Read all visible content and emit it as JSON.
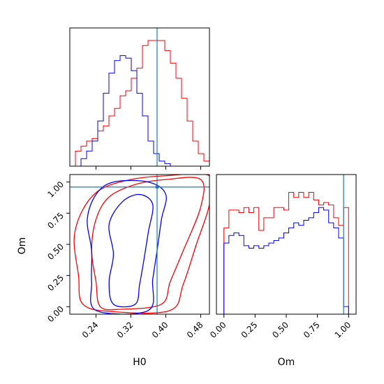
{
  "colors": {
    "series_red": "#ff0000",
    "series_blue": "#0000ff",
    "truth": "#1f77b4",
    "frame": "#000000"
  },
  "chart_data": [
    {
      "panel": "marginal-H0",
      "type": "histogram",
      "xlabel": "",
      "xlim": [
        0.18,
        0.5
      ],
      "x_ticks": [
        "0.24",
        "0.32",
        "0.40",
        "0.48"
      ],
      "tick_labels_shown": false,
      "y_ticks_shown": false,
      "bin_edges": [
        0.18,
        0.1928,
        0.2056,
        0.2184,
        0.2312,
        0.244,
        0.2568,
        0.2696,
        0.2824,
        0.2952,
        0.308,
        0.3208,
        0.3336,
        0.3464,
        0.3592,
        0.372,
        0.3848,
        0.3976,
        0.4104,
        0.4232,
        0.436,
        0.4488,
        0.4616,
        0.4744,
        0.4872,
        0.5
      ],
      "truth_value": 0.38,
      "ylim": [
        0,
        1.1
      ],
      "series": [
        {
          "color": "red",
          "values": [
            0.0,
            0.12,
            0.16,
            0.2,
            0.22,
            0.28,
            0.32,
            0.4,
            0.46,
            0.56,
            0.6,
            0.7,
            0.78,
            0.96,
            1.0,
            1.0,
            1.0,
            0.92,
            0.82,
            0.7,
            0.54,
            0.36,
            0.2,
            0.1,
            0.04
          ]
        },
        {
          "color": "blue",
          "values": [
            0.0,
            0.0,
            0.06,
            0.12,
            0.2,
            0.36,
            0.58,
            0.74,
            0.84,
            0.88,
            0.86,
            0.76,
            0.58,
            0.4,
            0.2,
            0.1,
            0.04,
            0.02,
            0.0,
            0.0,
            0.0,
            0.0,
            0.0,
            0.0,
            0.0
          ]
        }
      ]
    },
    {
      "panel": "joint-H0-Om",
      "type": "contour",
      "xlabel": "H0",
      "ylabel": "Om",
      "xlim": [
        0.18,
        0.5
      ],
      "ylim": [
        -0.06,
        1.06
      ],
      "x_ticks": [
        "0.24",
        "0.32",
        "0.40",
        "0.48"
      ],
      "y_ticks": [
        "0.00",
        "0.25",
        "0.50",
        "0.75",
        "1.00"
      ],
      "truth": {
        "x": 0.38,
        "y": 0.96
      },
      "contours": [
        {
          "color": "red",
          "points": [
            [
              0.25,
              0.0
            ],
            [
              0.24,
              0.2
            ],
            [
              0.23,
              0.45
            ],
            [
              0.24,
              0.7
            ],
            [
              0.27,
              0.88
            ],
            [
              0.33,
              0.98
            ],
            [
              0.4,
              1.02
            ],
            [
              0.48,
              1.02
            ],
            [
              0.48,
              0.8
            ],
            [
              0.44,
              0.45
            ],
            [
              0.41,
              0.2
            ],
            [
              0.39,
              0.02
            ],
            [
              0.3,
              -0.02
            ]
          ]
        },
        {
          "color": "red",
          "points": [
            [
              0.21,
              0.02
            ],
            [
              0.2,
              0.25
            ],
            [
              0.19,
              0.55
            ],
            [
              0.21,
              0.78
            ],
            [
              0.25,
              0.94
            ],
            [
              0.32,
              1.02
            ],
            [
              0.4,
              1.05
            ],
            [
              0.5,
              1.05
            ],
            [
              0.5,
              0.82
            ],
            [
              0.47,
              0.5
            ],
            [
              0.44,
              0.18
            ],
            [
              0.41,
              -0.03
            ],
            [
              0.28,
              -0.04
            ]
          ]
        },
        {
          "color": "blue",
          "points": [
            [
              0.28,
              0.02
            ],
            [
              0.27,
              0.2
            ],
            [
              0.28,
              0.42
            ],
            [
              0.27,
              0.66
            ],
            [
              0.3,
              0.84
            ],
            [
              0.34,
              0.9
            ],
            [
              0.37,
              0.82
            ],
            [
              0.36,
              0.6
            ],
            [
              0.35,
              0.38
            ],
            [
              0.34,
              0.18
            ],
            [
              0.33,
              0.02
            ]
          ]
        },
        {
          "color": "blue",
          "points": [
            [
              0.24,
              -0.03
            ],
            [
              0.23,
              0.2
            ],
            [
              0.23,
              0.45
            ],
            [
              0.22,
              0.7
            ],
            [
              0.24,
              0.9
            ],
            [
              0.28,
              1.0
            ],
            [
              0.36,
              1.0
            ],
            [
              0.4,
              0.9
            ],
            [
              0.39,
              0.7
            ],
            [
              0.38,
              0.45
            ],
            [
              0.37,
              0.22
            ],
            [
              0.36,
              -0.03
            ]
          ]
        }
      ]
    },
    {
      "panel": "marginal-Om",
      "type": "histogram",
      "xlabel": "Om",
      "xlim": [
        -0.06,
        1.06
      ],
      "x_ticks": [
        "0.00",
        "0.25",
        "0.50",
        "0.75",
        "1.00"
      ],
      "y_ticks_shown": false,
      "bin_edges": [
        0.0,
        0.04,
        0.08,
        0.12,
        0.16,
        0.2,
        0.24,
        0.28,
        0.32,
        0.36,
        0.4,
        0.44,
        0.48,
        0.52,
        0.56,
        0.6,
        0.64,
        0.68,
        0.72,
        0.76,
        0.8,
        0.84,
        0.88,
        0.92,
        0.96,
        1.0
      ],
      "truth_value": 0.96,
      "ylim": [
        0,
        1.1
      ],
      "series": [
        {
          "color": "red",
          "values": [
            0.68,
            0.82,
            0.82,
            0.8,
            0.84,
            0.8,
            0.84,
            0.66,
            0.76,
            0.76,
            0.84,
            0.84,
            0.82,
            0.96,
            0.92,
            0.96,
            0.92,
            0.96,
            0.9,
            0.86,
            0.88,
            0.86,
            0.76,
            0.7,
            0.84
          ]
        },
        {
          "color": "blue",
          "values": [
            0.56,
            0.62,
            0.64,
            0.62,
            0.54,
            0.52,
            0.54,
            0.52,
            0.54,
            0.56,
            0.58,
            0.6,
            0.64,
            0.68,
            0.72,
            0.7,
            0.74,
            0.76,
            0.8,
            0.84,
            0.82,
            0.72,
            0.68,
            0.6,
            0.06
          ]
        }
      ]
    }
  ]
}
